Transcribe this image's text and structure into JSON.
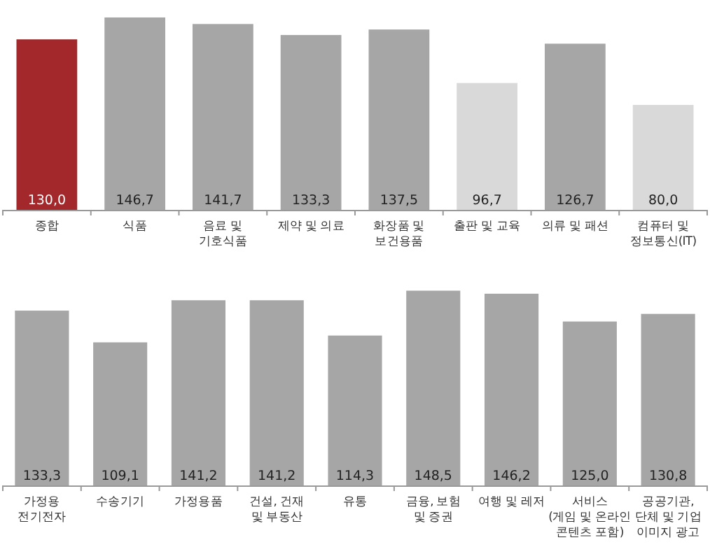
{
  "chart_data": [
    {
      "type": "bar",
      "categories": [
        "종합",
        "식품",
        "음료 및\n기호식품",
        "제약 및 의료",
        "화장품 및\n보건용품",
        "출판 및 교육",
        "의류 및 패션",
        "컴퓨터 및\n정보통신(IT)"
      ],
      "values": [
        130.0,
        146.7,
        141.7,
        133.3,
        137.5,
        96.7,
        126.7,
        80.0
      ],
      "value_labels": [
        "130,0",
        "146,7",
        "141,7",
        "133,3",
        "137,5",
        "96,7",
        "126,7",
        "80,0"
      ],
      "colors": [
        "#a3282b",
        "#a6a6a6",
        "#a6a6a6",
        "#a6a6a6",
        "#a6a6a6",
        "#d9d9d9",
        "#a6a6a6",
        "#d9d9d9"
      ]
    },
    {
      "type": "bar",
      "categories": [
        "가정용\n전기전자",
        "수송기기",
        "가정용품",
        "건설, 건재\n및 부동산",
        "유통",
        "금융, 보험\n및 증권",
        "여행 및 레저",
        "서비스\n(게임 및 온라인\n콘텐츠 포함)",
        "공공기관,\n단체 및 기업\n이미지 광고"
      ],
      "values": [
        133.3,
        109.1,
        141.2,
        141.2,
        114.3,
        148.5,
        146.2,
        125.0,
        130.8
      ],
      "value_labels": [
        "133,3",
        "109,1",
        "141,2",
        "141,2",
        "114,3",
        "148,5",
        "146,2",
        "125,0",
        "130,8"
      ],
      "colors": [
        "#a6a6a6",
        "#a6a6a6",
        "#a6a6a6",
        "#a6a6a6",
        "#a6a6a6",
        "#a6a6a6",
        "#a6a6a6",
        "#a6a6a6",
        "#a6a6a6"
      ]
    }
  ]
}
